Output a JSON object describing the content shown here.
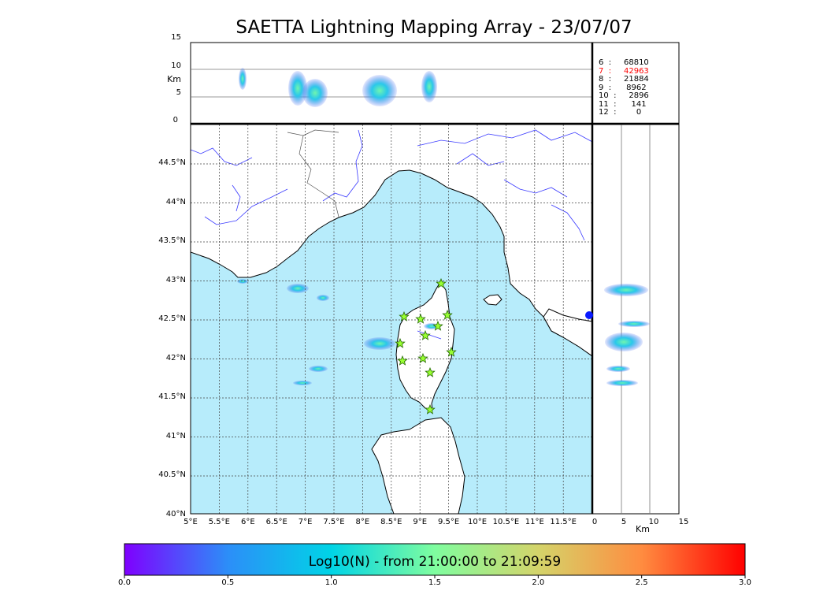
{
  "title": "SAETTA Lightning Mapping Array - 23/07/07",
  "top_panel": {
    "unit": "Km",
    "ticks": [
      "15",
      "10",
      "5",
      "0"
    ],
    "counts": [
      {
        "label": "6  :     68810",
        "highlight": false
      },
      {
        "label": "7  :     42963",
        "highlight": true
      },
      {
        "label": "8  :     21884",
        "highlight": false
      },
      {
        "label": "9  :      8962",
        "highlight": false
      },
      {
        "label": "10  :     2896",
        "highlight": false
      },
      {
        "label": "11  :      141",
        "highlight": false
      },
      {
        "label": "12  :        0",
        "highlight": false
      }
    ]
  },
  "map": {
    "lat_labels": [
      "44.5°N",
      "44°N",
      "43.5°N",
      "43°N",
      "42.5°N",
      "42°N",
      "41.5°N",
      "41°N",
      "40.5°N",
      "40°N"
    ],
    "lon_labels": [
      "5°E",
      "5.5°E",
      "6°E",
      "6.5°E",
      "7°E",
      "7.5°E",
      "8°E",
      "8.5°E",
      "9°E",
      "9.5°E",
      "10°E",
      "10.5°E",
      "11°E",
      "11.5°E"
    ],
    "sea_color": "#b7ecfb",
    "land_color": "#ffffff",
    "station_icon": "star-icon",
    "station_color": "#99ff33"
  },
  "side_panel": {
    "unit": "Km",
    "ticks": [
      "0",
      "5",
      "10",
      "15"
    ]
  },
  "colorbar": {
    "label": "Log10(N) - from 21:00:00 to 21:09:59",
    "ticks": [
      "0.0",
      "0.5",
      "1.0",
      "1.5",
      "2.0",
      "2.5",
      "3.0"
    ],
    "colors": [
      "#7f00ff",
      "#2c8ef8",
      "#00d4e6",
      "#7ffd9f",
      "#d4d46a",
      "#ff8c40",
      "#ff0000"
    ]
  }
}
